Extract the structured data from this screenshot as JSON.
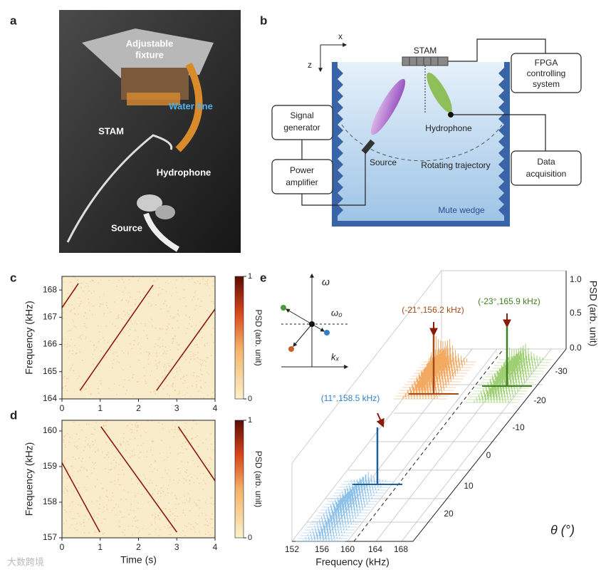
{
  "panels": {
    "a": {
      "label": "a",
      "fixture": [
        "Adjustable",
        "fixture"
      ],
      "water_line": "Water line",
      "stam": "STAM",
      "hydrophone": "Hydrophone",
      "source": "Source"
    },
    "b": {
      "label": "b",
      "x_axis": "x",
      "z_axis": "z",
      "stam": "STAM",
      "fpga": [
        "FPGA",
        "controlling",
        "system"
      ],
      "signal": [
        "Signal",
        "generator"
      ],
      "power": [
        "Power",
        "amplifier"
      ],
      "data": [
        "Data",
        "acquisition"
      ],
      "source": "Source",
      "hydrophone": "Hydrophone",
      "trajectory": "Rotating trajectory",
      "wedge": "Mute wedge"
    },
    "e": {
      "label": "e",
      "omega": "ω",
      "omega0": "ω₀",
      "kx": "kₓ",
      "freq_ticks": [
        "152",
        "156",
        "160",
        "164",
        "168"
      ],
      "freq_label": "Frequency (kHz)",
      "theta_ticks": [
        "20",
        "10",
        "0",
        "-10",
        "-20",
        "-30"
      ],
      "theta_label": "θ (°)",
      "psd_ticks": [
        "0.0",
        "0.5",
        "1.0"
      ],
      "psd_label": "PSD (arb. unit)",
      "peaks": [
        "(11°,158.5 kHz)",
        "(-21°,156.2 kHz)",
        "(-23°,165.9 kHz)"
      ]
    },
    "watermark": "大数跨境"
  },
  "chart_data": [
    {
      "type": "line",
      "label": "c",
      "x": [
        0,
        0.43,
        0.45,
        0.47,
        2.38,
        2.42,
        2.47,
        4
      ],
      "values": [
        167.35,
        168.24,
        null,
        164.31,
        168.18,
        null,
        164.31,
        167.3
      ],
      "color": "#8b1a0a",
      "ylabel": "Frequency (kHz)",
      "xlim": [
        0,
        4
      ],
      "xticks": [
        0,
        1,
        2,
        3,
        4
      ],
      "ylim": [
        164,
        168.5
      ],
      "yticks": [
        164,
        165,
        166,
        167,
        168
      ],
      "colorbar": {
        "ticks": [
          0,
          1
        ],
        "label": "PSD (arb. unit)"
      }
    },
    {
      "type": "line",
      "label": "d",
      "x": [
        0,
        0.99,
        1.0,
        1.02,
        3.0,
        3.02,
        3.04,
        4
      ],
      "values": [
        159.11,
        157.16,
        null,
        160.12,
        157.16,
        null,
        160.12,
        158.6
      ],
      "color": "#8b1a0a",
      "xlabel": "Time (s)",
      "ylabel": "Frequency (kHz)",
      "xlim": [
        0,
        4
      ],
      "xticks": [
        0,
        1,
        2,
        3,
        4
      ],
      "ylim": [
        157,
        160.3
      ],
      "yticks": [
        157,
        158,
        159,
        160
      ],
      "colorbar": {
        "ticks": [
          0,
          1
        ],
        "label": "PSD (arb. unit)"
      }
    }
  ]
}
